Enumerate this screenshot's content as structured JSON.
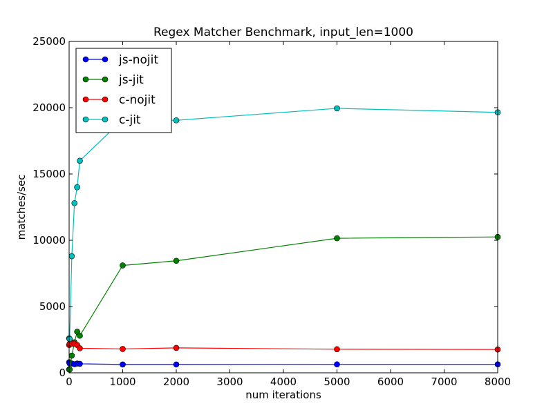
{
  "chart_data": {
    "type": "line",
    "title": "Regex Matcher Benchmark, input_len=1000",
    "xlabel": "num iterations",
    "ylabel": "matches/sec",
    "xlim": [
      0,
      8000
    ],
    "ylim": [
      0,
      25000
    ],
    "xticks": [
      0,
      1000,
      2000,
      3000,
      4000,
      5000,
      6000,
      7000,
      8000
    ],
    "yticks": [
      0,
      5000,
      10000,
      15000,
      20000,
      25000
    ],
    "grid": false,
    "legend_position": "top-left",
    "series": [
      {
        "name": "js-nojit",
        "color": "#0000ff",
        "x": [
          1,
          10,
          50,
          100,
          150,
          200,
          1000,
          2000,
          5000,
          8000
        ],
        "y": [
          800,
          700,
          700,
          650,
          700,
          680,
          630,
          630,
          640,
          640
        ]
      },
      {
        "name": "js-jit",
        "color": "#008000",
        "x": [
          1,
          10,
          50,
          100,
          150,
          200,
          1000,
          2000,
          5000,
          8000
        ],
        "y": [
          250,
          250,
          1300,
          2300,
          3100,
          2800,
          8100,
          8450,
          10150,
          10250
        ]
      },
      {
        "name": "c-nojit",
        "color": "#ff0000",
        "x": [
          1,
          10,
          50,
          100,
          150,
          200,
          1000,
          2000,
          5000,
          8000
        ],
        "y": [
          2100,
          2200,
          2200,
          2200,
          2100,
          1850,
          1800,
          1880,
          1780,
          1760
        ]
      },
      {
        "name": "c-jit",
        "color": "#00bfbf",
        "x": [
          1,
          10,
          50,
          100,
          150,
          200,
          1000,
          2000,
          5000,
          8000
        ],
        "y": [
          2600,
          2550,
          8800,
          12800,
          14000,
          16000,
          19100,
          19050,
          19950,
          19650
        ]
      }
    ]
  }
}
